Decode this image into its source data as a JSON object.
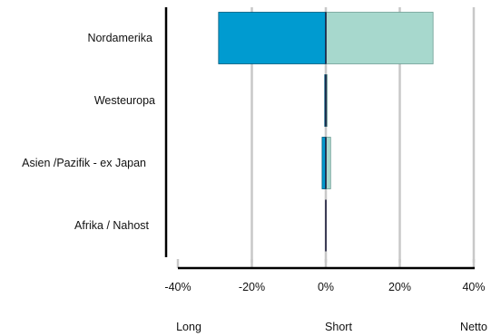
{
  "chart_data": {
    "type": "bar",
    "orientation": "horizontal",
    "categories": [
      "Nordamerika",
      "Westeuropa",
      "Asien /Pazifik - ex Japan",
      "Afrika / Nahost"
    ],
    "series": [
      {
        "name": "Long",
        "values": [
          -29,
          -0.3,
          -1,
          0
        ],
        "color": "#009bd0"
      },
      {
        "name": "Short",
        "values": [
          29,
          0.3,
          1.3,
          0
        ],
        "color": "#a7d8cd"
      },
      {
        "name": "Netto",
        "values": [
          0,
          0,
          0,
          0
        ],
        "color": "#1a1a3a"
      }
    ],
    "x_ticks": [
      "-40%",
      "-20%",
      "0%",
      "20%",
      "40%"
    ],
    "x_tick_values": [
      -40,
      -20,
      0,
      20,
      40
    ],
    "xlim": [
      -40,
      40
    ],
    "grid": true,
    "legend_position": "bottom",
    "legend": [
      "Long",
      "Short",
      "Netto"
    ],
    "title": "",
    "xlabel": "",
    "ylabel": ""
  }
}
